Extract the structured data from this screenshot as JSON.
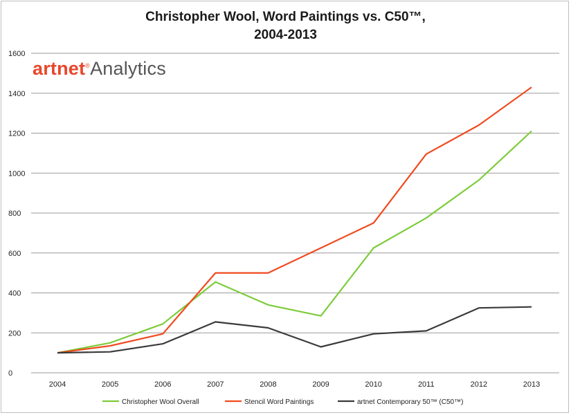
{
  "brand": {
    "artnet": "artnet",
    "reg": "®",
    "analytics": "Analytics"
  },
  "chart_data": {
    "type": "line",
    "title_line1": "Christopher Wool, Word Paintings vs. C50™,",
    "title_line2": "2004-2013",
    "xlabel": "",
    "ylabel": "",
    "x": [
      "2004",
      "2005",
      "2006",
      "2007",
      "2008",
      "2009",
      "2010",
      "2011",
      "2012",
      "2013"
    ],
    "ylim": [
      0,
      1600
    ],
    "yticks": [
      0,
      200,
      400,
      600,
      800,
      1000,
      1200,
      1400,
      1600
    ],
    "grid": true,
    "legend_position": "bottom",
    "series": [
      {
        "name": "Christopher Wool Overall",
        "color": "#7ccc3a",
        "values": [
          100,
          150,
          245,
          455,
          340,
          285,
          625,
          775,
          965,
          1210
        ]
      },
      {
        "name": "Stencil Word Paintings",
        "color": "#f04a1f",
        "values": [
          100,
          135,
          195,
          500,
          500,
          625,
          750,
          1095,
          1240,
          1430
        ]
      },
      {
        "name": "artnet Contemporary 50™ (C50™)",
        "color": "#3a3a3a",
        "values": [
          100,
          105,
          145,
          255,
          225,
          130,
          195,
          210,
          325,
          330
        ]
      }
    ]
  }
}
